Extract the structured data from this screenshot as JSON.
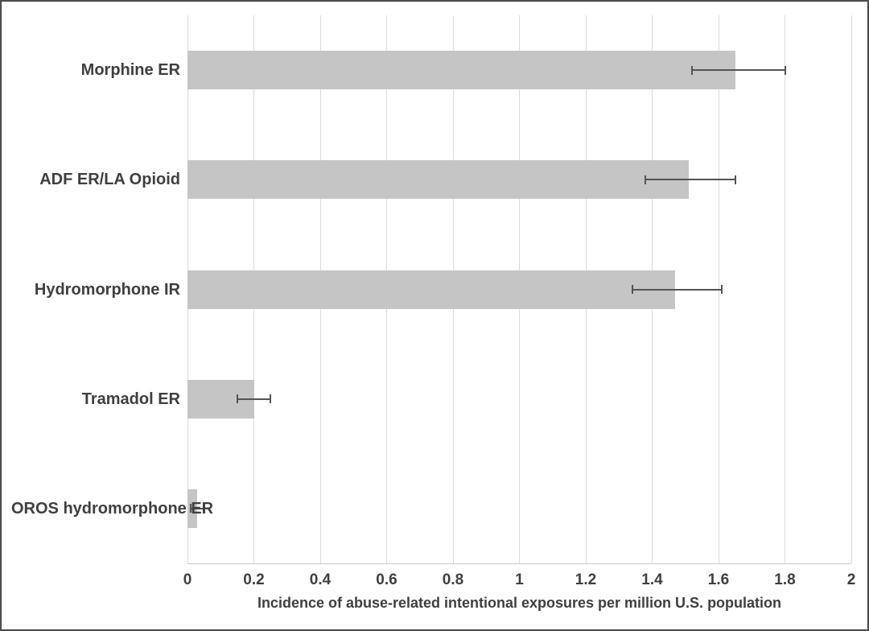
{
  "chart_data": {
    "type": "bar",
    "orientation": "horizontal",
    "title": "",
    "xlabel": "Incidence of abuse-related intentional exposures per million U.S. population",
    "ylabel": "",
    "categories": [
      "Morphine ER",
      "ADF ER/LA Opioid",
      "Hydromorphone IR",
      "Tramadol ER",
      "OROS hydromorphone ER"
    ],
    "values": [
      1.65,
      1.51,
      1.47,
      0.2,
      0.03
    ],
    "error_low": [
      1.52,
      1.38,
      1.34,
      0.15,
      0.01
    ],
    "error_high": [
      1.8,
      1.65,
      1.61,
      0.25,
      0.05
    ],
    "xlim": [
      0,
      2
    ],
    "xticks": [
      0,
      0.2,
      0.4,
      0.6,
      0.8,
      1,
      1.2,
      1.4,
      1.6,
      1.8,
      2
    ],
    "xtick_labels": [
      "0",
      "0.2",
      "0.4",
      "0.6",
      "0.8",
      "1",
      "1.2",
      "1.4",
      "1.6",
      "1.8",
      "2"
    ],
    "grid": "vertical",
    "legend": "none",
    "colors": {
      "bar_fill": "#c5c5c5",
      "error_bar": "#545454",
      "gridline": "#dcdcdc",
      "axis_line": "#c9c9c9",
      "text": "#3f3f3f",
      "frame_border": "#4d4d4d",
      "background": "#ffffff"
    }
  }
}
